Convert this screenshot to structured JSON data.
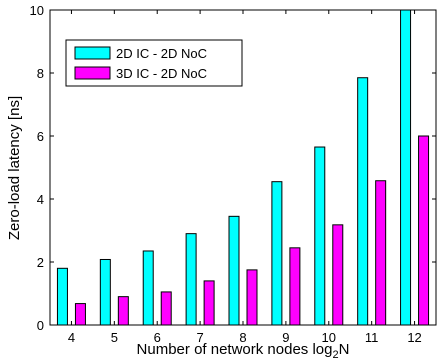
{
  "chart_data": {
    "type": "bar",
    "title": "",
    "xlabel": "Number of network nodes log",
    "xlabel_subscript": "2",
    "xlabel_suffix": "N",
    "ylabel": "Zero-load latency [ns]",
    "categories": [
      "4",
      "5",
      "6",
      "7",
      "8",
      "9",
      "10",
      "11",
      "12"
    ],
    "series": [
      {
        "name": "2D IC - 2D NoC",
        "color": "#00ffff",
        "values": [
          1.8,
          2.08,
          2.35,
          2.9,
          3.45,
          4.55,
          5.65,
          7.85,
          10.0
        ]
      },
      {
        "name": "3D IC - 2D NoC",
        "color": "#ff00ff",
        "values": [
          0.68,
          0.9,
          1.05,
          1.4,
          1.75,
          2.45,
          3.18,
          4.58,
          6.0
        ]
      }
    ],
    "ylim": [
      0,
      10
    ],
    "yticks": [
      "0",
      "2",
      "4",
      "6",
      "8",
      "10"
    ],
    "grid": false,
    "legend_position": "top-left"
  }
}
